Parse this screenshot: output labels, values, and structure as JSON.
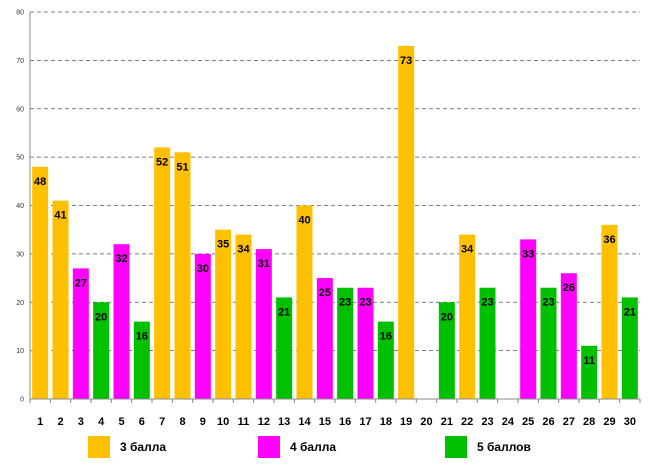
{
  "chart_data": {
    "type": "bar",
    "title": "",
    "xlabel": "",
    "ylabel": "",
    "ylim": [
      0,
      80
    ],
    "yticks": [
      0,
      10,
      20,
      30,
      40,
      50,
      60,
      70,
      80
    ],
    "grid": true,
    "legend_position": "bottom",
    "categories": [
      "1",
      "2",
      "3",
      "4",
      "5",
      "6",
      "7",
      "8",
      "9",
      "10",
      "11",
      "12",
      "13",
      "14",
      "15",
      "16",
      "17",
      "18",
      "19",
      "20",
      "21",
      "22",
      "23",
      "24",
      "25",
      "26",
      "27",
      "28",
      "29",
      "30"
    ],
    "values": [
      48,
      41,
      27,
      20,
      32,
      16,
      52,
      51,
      30,
      35,
      34,
      31,
      21,
      40,
      25,
      23,
      23,
      16,
      73,
      null,
      20,
      34,
      23,
      null,
      33,
      23,
      26,
      11,
      36,
      21
    ],
    "value_labels": [
      "48",
      "41",
      "27",
      "20",
      "32",
      "16",
      "52",
      "51",
      "30",
      "35",
      "34",
      "31",
      "21",
      "40",
      "25",
      "23",
      "23",
      "16",
      "73",
      "",
      "20",
      "34",
      "23",
      "",
      "33",
      "23",
      "26",
      "11",
      "36",
      "21"
    ],
    "groups": [
      "s3",
      "s3",
      "s4",
      "s5",
      "s4",
      "s5",
      "s3",
      "s3",
      "s4",
      "s3",
      "s3",
      "s4",
      "s5",
      "s3",
      "s4",
      "s5",
      "s4",
      "s5",
      "s3",
      "",
      "s5",
      "s3",
      "s5",
      "",
      "s4",
      "s5",
      "s4",
      "s5",
      "s3",
      "s5"
    ],
    "series": [
      {
        "key": "s3",
        "name": "3 балла",
        "color": "#FFC000"
      },
      {
        "key": "s4",
        "name": "4 балла",
        "color": "#FF00FF"
      },
      {
        "key": "s5",
        "name": "5 баллов",
        "color": "#00C000"
      }
    ]
  }
}
